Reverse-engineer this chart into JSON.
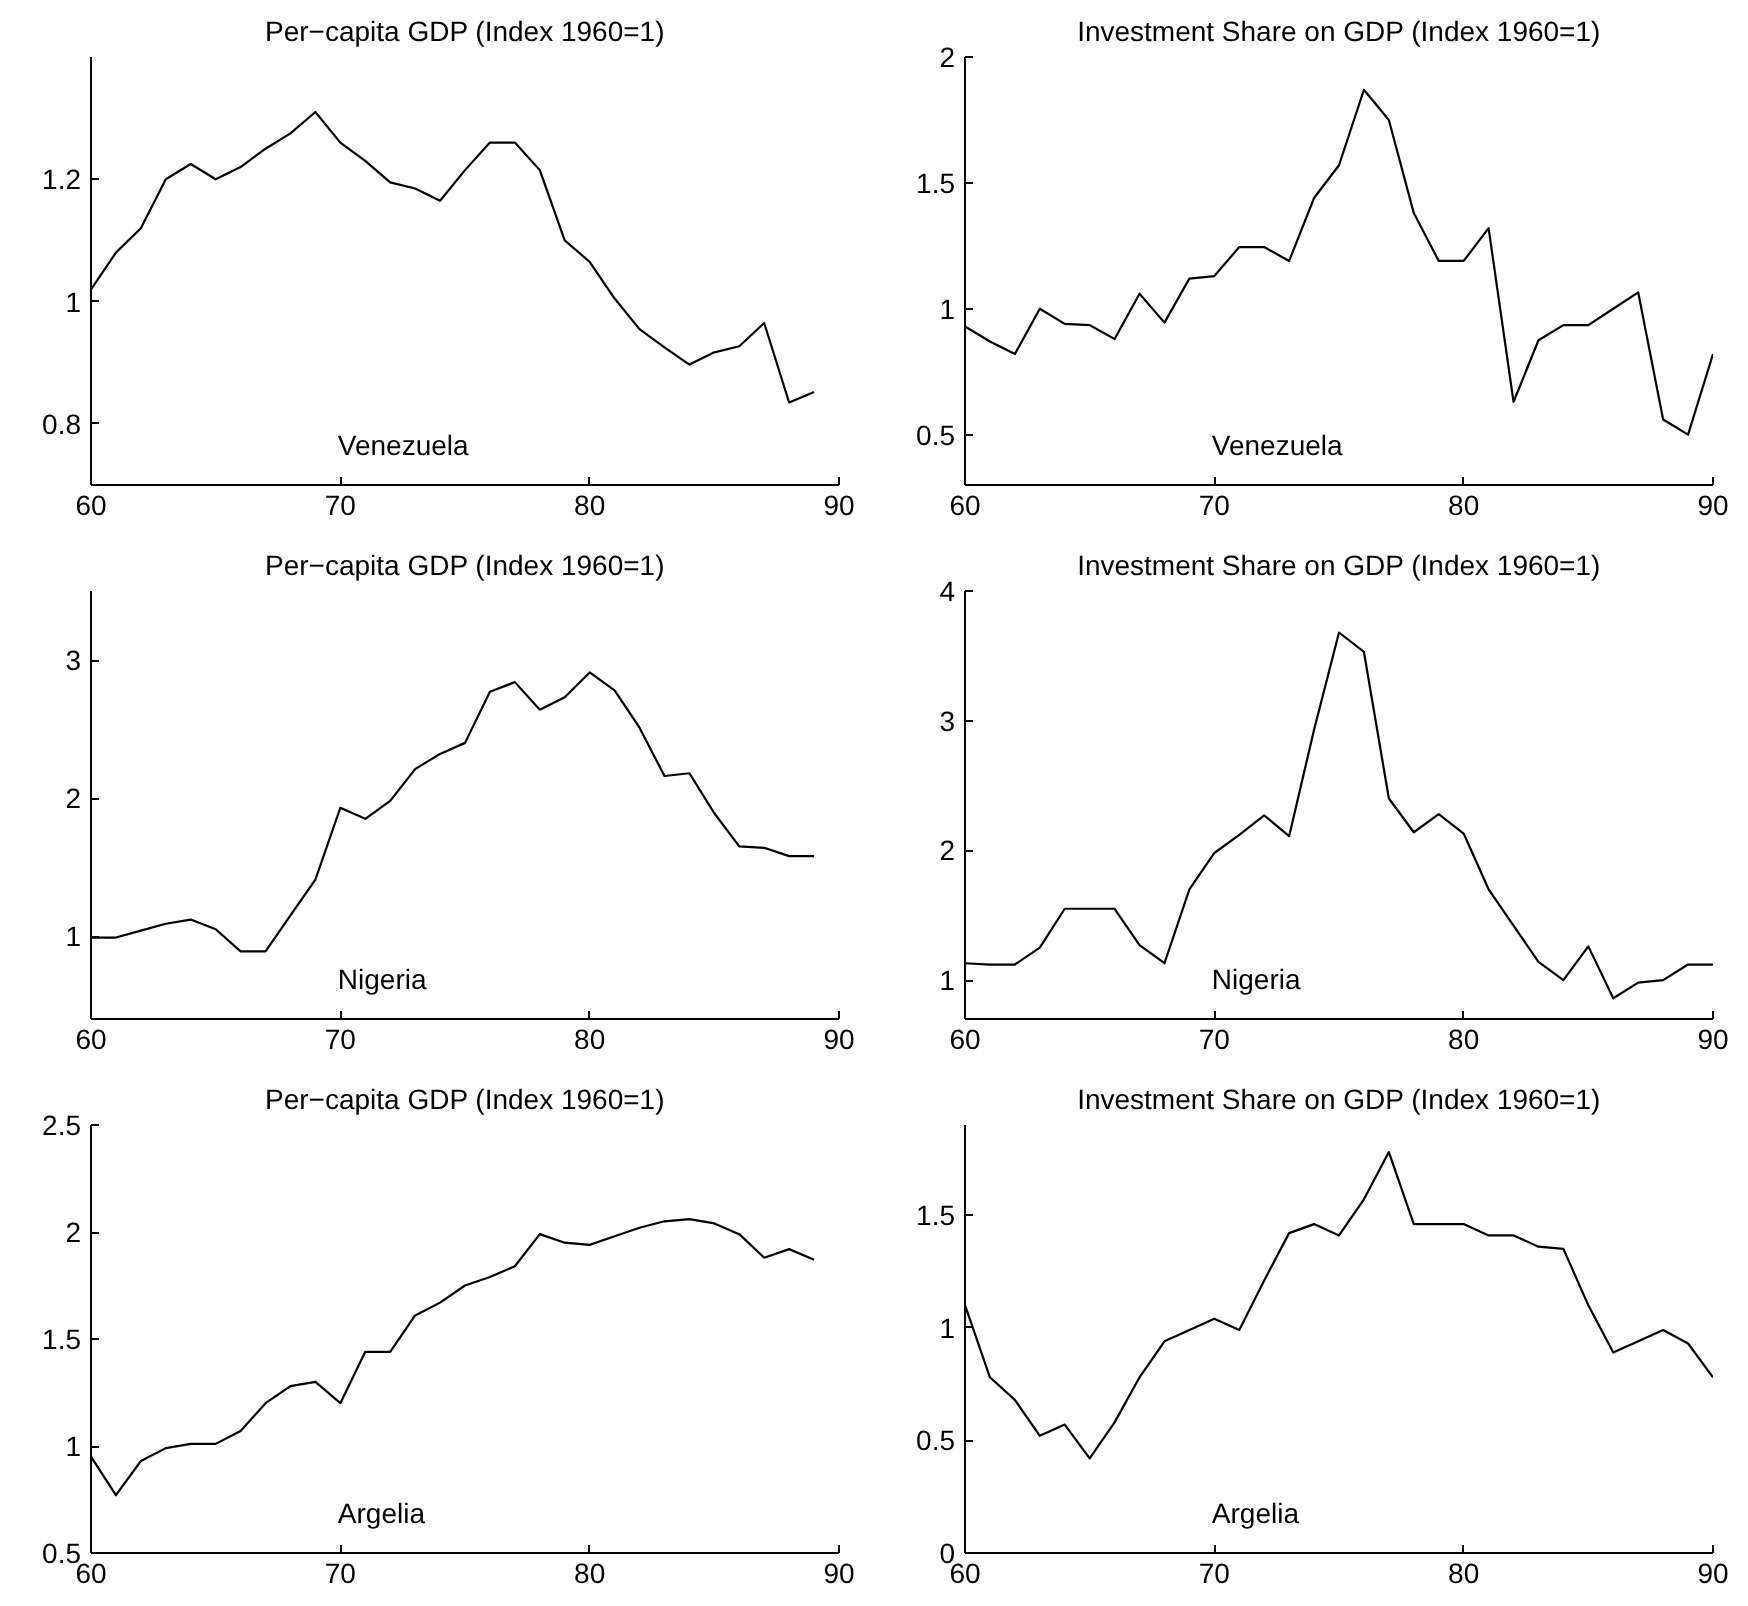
{
  "chart_data": [
    {
      "type": "line",
      "title": "Per−capita GDP (Index 1960=1)",
      "annotations": [
        "Venezuela"
      ],
      "xlim": [
        60,
        90
      ],
      "xticks": [
        60,
        70,
        80,
        90
      ],
      "ylim": [
        0.7,
        1.4
      ],
      "yticks": [
        0.8,
        1,
        1.2
      ],
      "x": [
        60,
        61,
        62,
        63,
        64,
        65,
        66,
        67,
        68,
        69,
        70,
        71,
        72,
        73,
        74,
        75,
        76,
        77,
        78,
        79,
        80,
        81,
        82,
        83,
        84,
        85,
        86,
        87,
        88,
        89
      ],
      "series": [
        {
          "color": "#000000",
          "values": [
            1.02,
            1.08,
            1.12,
            1.2,
            1.225,
            1.2,
            1.22,
            1.25,
            1.275,
            1.31,
            1.26,
            1.23,
            1.195,
            1.185,
            1.165,
            1.215,
            1.26,
            1.26,
            1.215,
            1.1,
            1.065,
            1.005,
            0.955,
            0.925,
            0.897,
            0.917,
            0.927,
            0.965,
            0.835,
            0.852
          ]
        }
      ]
    },
    {
      "type": "line",
      "title": "Investment Share on GDP (Index 1960=1)",
      "annotations": [
        "Venezuela"
      ],
      "xlim": [
        60,
        90
      ],
      "xticks": [
        60,
        70,
        80,
        90
      ],
      "ylim": [
        0.3,
        2
      ],
      "yticks": [
        0.5,
        1,
        1.5,
        2
      ],
      "x": [
        60,
        61,
        62,
        63,
        64,
        65,
        66,
        67,
        68,
        69,
        70,
        71,
        72,
        73,
        74,
        75,
        76,
        77,
        78,
        79,
        80,
        81,
        82,
        83,
        84,
        85,
        86,
        87,
        88,
        89,
        90
      ],
      "series": [
        {
          "color": "#000000",
          "values": [
            0.93,
            0.87,
            0.82,
            1.0,
            0.94,
            0.935,
            0.88,
            1.06,
            0.945,
            1.12,
            1.13,
            1.245,
            1.245,
            1.19,
            1.44,
            1.57,
            1.87,
            1.75,
            1.38,
            1.19,
            1.19,
            1.32,
            0.63,
            0.875,
            0.935,
            0.935,
            1.0,
            1.065,
            0.56,
            0.5,
            0.82
          ]
        }
      ]
    },
    {
      "type": "line",
      "title": "Per−capita GDP (Index 1960=1)",
      "annotations": [
        "Nigeria"
      ],
      "xlim": [
        60,
        90
      ],
      "xticks": [
        60,
        70,
        80,
        90
      ],
      "ylim": [
        0.4,
        3.5
      ],
      "yticks": [
        1,
        2,
        3
      ],
      "x": [
        60,
        61,
        62,
        63,
        64,
        65,
        66,
        67,
        68,
        69,
        70,
        71,
        72,
        73,
        74,
        75,
        76,
        77,
        78,
        79,
        80,
        81,
        82,
        83,
        84,
        85,
        86,
        87,
        88,
        89
      ],
      "series": [
        {
          "color": "#000000",
          "values": [
            0.99,
            0.99,
            1.04,
            1.09,
            1.12,
            1.05,
            0.89,
            0.89,
            1.15,
            1.41,
            1.93,
            1.85,
            1.98,
            2.21,
            2.32,
            2.4,
            2.77,
            2.84,
            2.64,
            2.73,
            2.91,
            2.78,
            2.51,
            2.16,
            2.18,
            1.89,
            1.65,
            1.64,
            1.58,
            1.58
          ]
        }
      ]
    },
    {
      "type": "line",
      "title": "Investment Share on GDP (Index 1960=1)",
      "annotations": [
        "Nigeria"
      ],
      "xlim": [
        60,
        90
      ],
      "xticks": [
        60,
        70,
        80,
        90
      ],
      "ylim": [
        0.7,
        4
      ],
      "yticks": [
        1,
        2,
        3,
        4
      ],
      "x": [
        60,
        61,
        62,
        63,
        64,
        65,
        66,
        67,
        68,
        69,
        70,
        71,
        72,
        73,
        74,
        75,
        76,
        77,
        78,
        79,
        80,
        81,
        82,
        83,
        84,
        85,
        86,
        87,
        88,
        89,
        90
      ],
      "series": [
        {
          "color": "#000000",
          "values": [
            1.13,
            1.12,
            1.12,
            1.25,
            1.55,
            1.55,
            1.55,
            1.27,
            1.13,
            1.7,
            1.98,
            2.12,
            2.27,
            2.11,
            2.93,
            3.68,
            3.53,
            2.4,
            2.14,
            2.28,
            2.13,
            1.7,
            1.42,
            1.14,
            1.0,
            1.26,
            0.86,
            0.98,
            1.0,
            1.12,
            1.12
          ]
        }
      ]
    },
    {
      "type": "line",
      "title": "Per−capita GDP (Index 1960=1)",
      "annotations": [
        "Argelia"
      ],
      "xlim": [
        60,
        90
      ],
      "xticks": [
        60,
        70,
        80,
        90
      ],
      "ylim": [
        0.5,
        2.5
      ],
      "yticks": [
        0.5,
        1,
        1.5,
        2,
        2.5
      ],
      "x": [
        60,
        61,
        62,
        63,
        64,
        65,
        66,
        67,
        68,
        69,
        70,
        71,
        72,
        73,
        74,
        75,
        76,
        77,
        78,
        79,
        80,
        81,
        82,
        83,
        84,
        85,
        86,
        87,
        88,
        89
      ],
      "series": [
        {
          "color": "#000000",
          "values": [
            0.95,
            0.77,
            0.93,
            0.99,
            1.01,
            1.01,
            1.07,
            1.2,
            1.28,
            1.3,
            1.2,
            1.44,
            1.44,
            1.61,
            1.67,
            1.75,
            1.79,
            1.84,
            1.99,
            1.95,
            1.94,
            1.98,
            2.02,
            2.05,
            2.06,
            2.04,
            1.99,
            1.88,
            1.92,
            1.87
          ]
        }
      ]
    },
    {
      "type": "line",
      "title": "Investment Share on GDP (Index 1960=1)",
      "annotations": [
        "Argelia"
      ],
      "xlim": [
        60,
        90
      ],
      "xticks": [
        60,
        70,
        80,
        90
      ],
      "ylim": [
        0,
        1.9
      ],
      "yticks": [
        0,
        0.5,
        1,
        1.5
      ],
      "x": [
        60,
        61,
        62,
        63,
        64,
        65,
        66,
        67,
        68,
        69,
        70,
        71,
        72,
        73,
        74,
        75,
        76,
        77,
        78,
        79,
        80,
        81,
        82,
        83,
        84,
        85,
        86,
        87,
        88,
        89,
        90
      ],
      "series": [
        {
          "color": "#000000",
          "values": [
            1.1,
            0.78,
            0.68,
            0.52,
            0.57,
            0.42,
            0.58,
            0.78,
            0.94,
            0.99,
            1.04,
            0.99,
            1.21,
            1.42,
            1.46,
            1.41,
            1.57,
            1.78,
            1.46,
            1.46,
            1.46,
            1.41,
            1.41,
            1.36,
            1.35,
            1.1,
            0.89,
            0.94,
            0.99,
            0.93,
            0.78
          ]
        }
      ]
    }
  ]
}
